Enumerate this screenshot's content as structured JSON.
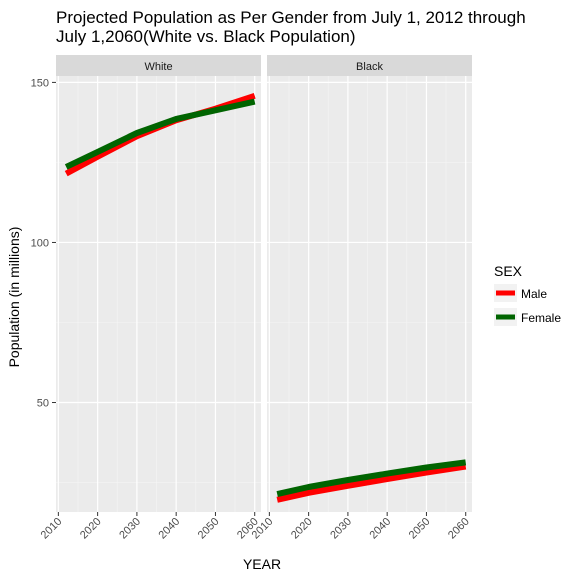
{
  "chart_data": {
    "type": "line",
    "title_lines": [
      "Projected Population as Per Gender from July 1, 2012 through",
      " July 1,2060(White vs. Black Population)"
    ],
    "xlabel": "YEAR",
    "ylabel": "Population (in millions)",
    "xlim": [
      2009.4,
      2061.6
    ],
    "ylim": [
      15.8,
      152
    ],
    "x_ticks": [
      2010,
      2020,
      2030,
      2040,
      2050,
      2060
    ],
    "y_ticks": [
      50,
      100,
      150
    ],
    "legend": {
      "title": "SEX",
      "placement": "right",
      "entries": [
        {
          "label": "Male",
          "color": "#ff0000"
        },
        {
          "label": "Female",
          "color": "#006400"
        }
      ]
    },
    "panels": [
      {
        "facet": "White",
        "series": [
          {
            "name": "Male",
            "color": "#ff0000",
            "x": [
              2012,
              2020,
              2030,
              2040,
              2050,
              2060
            ],
            "y": [
              121.5,
              126.8,
              133.2,
              138.2,
              141.8,
              145.8
            ]
          },
          {
            "name": "Female",
            "color": "#006400",
            "x": [
              2012,
              2020,
              2030,
              2040,
              2050,
              2060
            ],
            "y": [
              123.6,
              128.3,
              134.2,
              138.6,
              141.3,
              144.0
            ]
          }
        ]
      },
      {
        "facet": "Black",
        "series": [
          {
            "name": "Male",
            "color": "#ff0000",
            "x": [
              2012,
              2020,
              2030,
              2040,
              2050,
              2060
            ],
            "y": [
              19.6,
              21.8,
              24.0,
              26.1,
              28.1,
              30.0
            ]
          },
          {
            "name": "Female",
            "color": "#006400",
            "x": [
              2012,
              2020,
              2030,
              2040,
              2050,
              2060
            ],
            "y": [
              21.4,
              23.6,
              25.8,
              27.8,
              29.7,
              31.3
            ]
          }
        ]
      }
    ],
    "grid": true
  }
}
